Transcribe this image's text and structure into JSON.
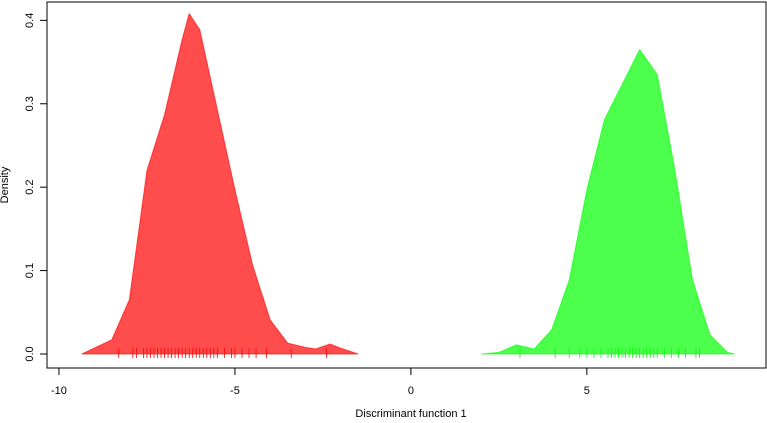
{
  "chart_data": {
    "type": "area",
    "xlabel": "Discriminant function 1",
    "ylabel": "Density",
    "xlim": [
      -10.34,
      10.09
    ],
    "ylim": [
      -0.0168,
      0.422
    ],
    "xticks": [
      -10,
      -5,
      0,
      5
    ],
    "yticks": [
      {
        "value": 0,
        "label": "0.0"
      },
      0.1,
      0.2,
      0.3,
      0.4
    ],
    "series": [
      {
        "color": "#ff0000",
        "x": [
          -9.35,
          -8.5,
          -8.0,
          -7.5,
          -7.0,
          -6.5,
          -6.3,
          -6.0,
          -5.5,
          -5.0,
          -4.5,
          -4.0,
          -3.5,
          -3.0,
          -2.7,
          -2.3,
          -2.0,
          -1.5
        ],
        "values": [
          0.0,
          0.017,
          0.065,
          0.22,
          0.287,
          0.377,
          0.408,
          0.389,
          0.293,
          0.197,
          0.107,
          0.041,
          0.013,
          0.008,
          0.006,
          0.012,
          0.007,
          0.0
        ],
        "rug": [
          -8.3,
          -7.9,
          -7.8,
          -7.6,
          -7.5,
          -7.4,
          -7.3,
          -7.2,
          -7.1,
          -7.0,
          -6.9,
          -6.8,
          -6.7,
          -6.6,
          -6.5,
          -6.4,
          -6.3,
          -6.2,
          -6.1,
          -6.0,
          -5.9,
          -5.8,
          -5.7,
          -5.6,
          -5.5,
          -5.3,
          -5.1,
          -5.0,
          -4.8,
          -4.6,
          -4.4,
          -4.1,
          -3.4,
          -2.4
        ]
      },
      {
        "color": "#00ff00",
        "x": [
          2.0,
          2.5,
          3.0,
          3.5,
          4.0,
          4.5,
          5.0,
          5.5,
          6.0,
          6.5,
          7.0,
          7.5,
          8.0,
          8.5,
          9.0,
          9.2
        ],
        "values": [
          0.0,
          0.002,
          0.011,
          0.006,
          0.029,
          0.089,
          0.197,
          0.281,
          0.323,
          0.365,
          0.335,
          0.221,
          0.089,
          0.023,
          0.002,
          0.0
        ],
        "rug": [
          3.1,
          4.1,
          4.5,
          4.8,
          5.0,
          5.2,
          5.4,
          5.6,
          5.7,
          5.8,
          5.9,
          6.0,
          6.1,
          6.2,
          6.3,
          6.4,
          6.5,
          6.6,
          6.7,
          6.8,
          6.9,
          7.0,
          7.2,
          7.4,
          7.6,
          7.8,
          8.1,
          8.2
        ]
      }
    ]
  }
}
